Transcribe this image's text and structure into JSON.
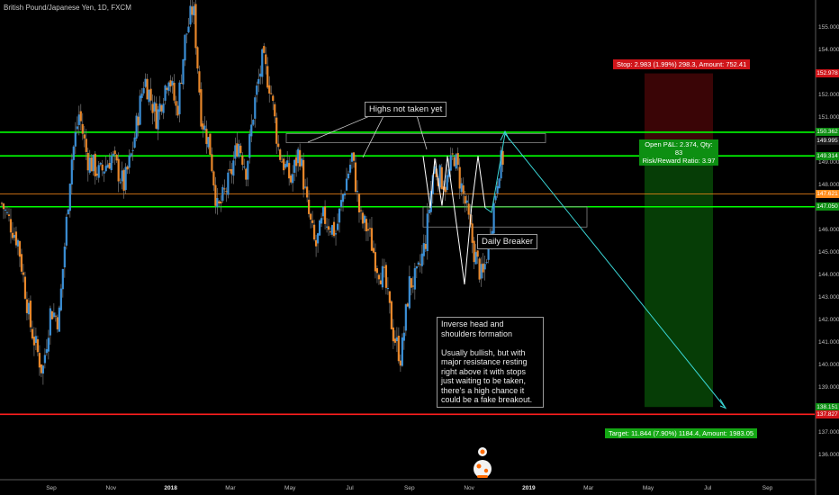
{
  "chart_data": {
    "type": "candlestick",
    "title": "British Pound/Japanese Yen, 1D, FXCM",
    "ylim": [
      136.0,
      156.0
    ],
    "y_ticks": [
      "155.000",
      "154.000",
      "153.000",
      "152.000",
      "151.000",
      "150.000",
      "149.000",
      "148.000",
      "147.000",
      "146.000",
      "145.000",
      "144.000",
      "143.000",
      "142.000",
      "141.000",
      "140.000",
      "139.000",
      "138.000",
      "137.000",
      "136.000"
    ],
    "x_ticks": [
      "Sep",
      "Nov",
      "2018",
      "Mar",
      "May",
      "Jul",
      "Sep",
      "Nov",
      "2019",
      "Mar",
      "May",
      "Jul",
      "Sep"
    ],
    "x_ticks_bold": [
      "2018",
      "2019"
    ],
    "horizontal_levels": [
      {
        "price": 150.362,
        "color": "#00ff00"
      },
      {
        "price": 149.314,
        "color": "#00ff00"
      },
      {
        "price": 147.05,
        "color": "#00ff00"
      },
      {
        "price": 147.621,
        "color": "#ff8c1a"
      },
      {
        "price": 137.827,
        "color": "#ff1e1e"
      }
    ],
    "price_labels": [
      {
        "text": "152.978",
        "price": 152.978,
        "bg": "#d0151a"
      },
      {
        "text": "150.362",
        "price": 150.362,
        "bg": "#0d8f12"
      },
      {
        "text": "149.995",
        "price": 149.995,
        "bg": "#1a1a1a"
      },
      {
        "text": "149.314",
        "price": 149.314,
        "bg": "#0d8f12"
      },
      {
        "text": "147.621",
        "price": 147.621,
        "bg": "#ff8c1a"
      },
      {
        "text": "147.050",
        "price": 147.05,
        "bg": "#0d8f12"
      },
      {
        "text": "138.151",
        "price": 138.151,
        "bg": "#0d8f12"
      },
      {
        "text": "137.827",
        "price": 137.827,
        "bg": "#d0151a"
      }
    ],
    "position": {
      "entry": 149.995,
      "stop": 152.978,
      "target": 138.151,
      "stop_label": "Stop: 2.983 (1.99%) 298.3, Amount: 752.41",
      "target_label": "Target: 11.844 (7.90%) 1184.4, Amount: 1983.05",
      "pnl_line1": "Open P&L: 2.374, Qty: 83",
      "pnl_line2": "Risk/Reward Ratio: 3.97"
    },
    "annotations": {
      "highs": "Highs not taken yet",
      "daily_breaker": "Daily Breaker",
      "ihs": "Inverse head and\nshoulders formation\n\nUsually bullish, but with\nmajor resistance resting\nright above it with stops\njust waiting to be taken,\nthere's a high chance it\ncould be a fake breakout."
    },
    "price_path": [
      [
        0,
        147.2
      ],
      [
        0.02,
        145.5
      ],
      [
        0.035,
        141.8
      ],
      [
        0.05,
        139.7
      ],
      [
        0.06,
        142.5
      ],
      [
        0.07,
        142.0
      ],
      [
        0.085,
        149.0
      ],
      [
        0.095,
        151.2
      ],
      [
        0.105,
        149.2
      ],
      [
        0.12,
        148.5
      ],
      [
        0.135,
        149.3
      ],
      [
        0.15,
        148.0
      ],
      [
        0.16,
        149.5
      ],
      [
        0.175,
        152.8
      ],
      [
        0.19,
        151.0
      ],
      [
        0.205,
        153.0
      ],
      [
        0.215,
        151.2
      ],
      [
        0.225,
        154.5
      ],
      [
        0.235,
        156.0
      ],
      [
        0.245,
        151.0
      ],
      [
        0.255,
        149.8
      ],
      [
        0.265,
        146.8
      ],
      [
        0.28,
        148.3
      ],
      [
        0.29,
        150.0
      ],
      [
        0.3,
        148.7
      ],
      [
        0.31,
        151.6
      ],
      [
        0.32,
        153.6
      ],
      [
        0.33,
        152.3
      ],
      [
        0.34,
        149.5
      ],
      [
        0.355,
        148.2
      ],
      [
        0.365,
        149.6
      ],
      [
        0.375,
        147.0
      ],
      [
        0.385,
        145.2
      ],
      [
        0.395,
        146.6
      ],
      [
        0.41,
        145.9
      ],
      [
        0.42,
        147.8
      ],
      [
        0.43,
        149.3
      ],
      [
        0.44,
        146.5
      ],
      [
        0.45,
        146.0
      ],
      [
        0.46,
        144.5
      ],
      [
        0.47,
        143.8
      ],
      [
        0.48,
        141.5
      ],
      [
        0.49,
        140.3
      ],
      [
        0.5,
        143.6
      ],
      [
        0.51,
        143.9
      ],
      [
        0.52,
        145.5
      ],
      [
        0.53,
        148.8
      ],
      [
        0.545,
        148.0
      ],
      [
        0.555,
        149.4
      ],
      [
        0.57,
        147.0
      ],
      [
        0.58,
        145.0
      ],
      [
        0.59,
        143.8
      ],
      [
        0.6,
        146.0
      ],
      [
        0.61,
        148.8
      ],
      [
        0.615,
        149.2
      ]
    ]
  }
}
